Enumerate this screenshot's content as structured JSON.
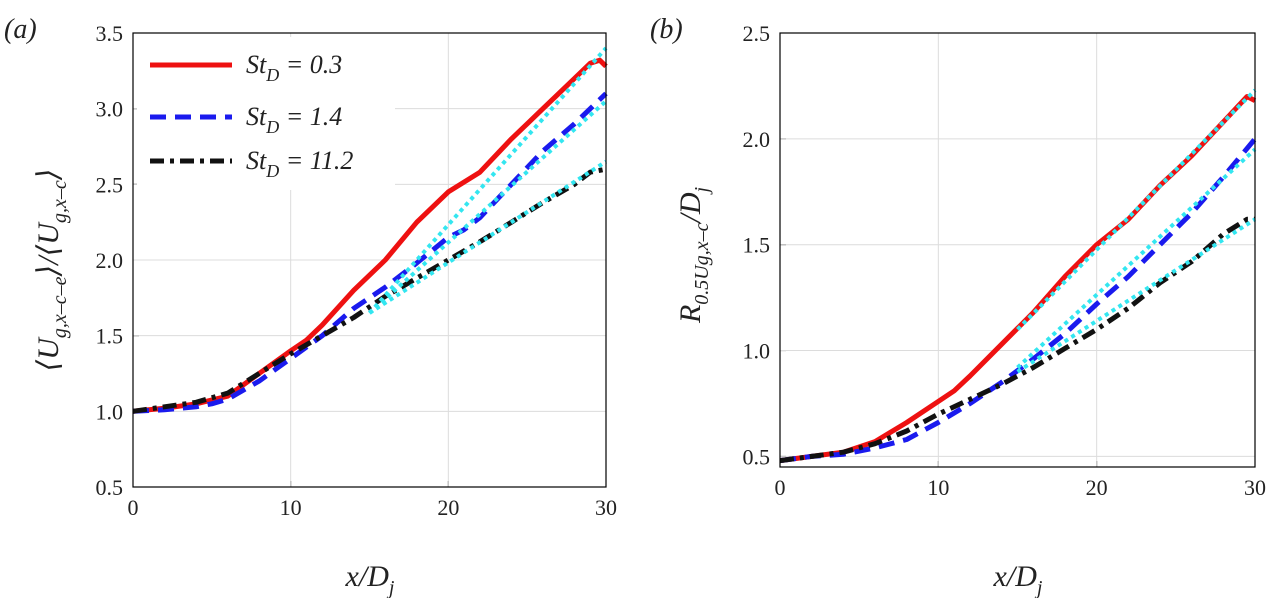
{
  "chart_data": [
    {
      "type": "line",
      "panel_label": "(a)",
      "xlabel": "x/Dj",
      "ylabel": "⟨Ug,x–c–e⟩/⟨Ug,x–c⟩",
      "xlim": [
        0,
        30
      ],
      "ylim": [
        0.5,
        3.5
      ],
      "xticks": [
        "0",
        "10",
        "20",
        "30"
      ],
      "yticks": [
        "0.5",
        "1.0",
        "1.5",
        "2.0",
        "2.5",
        "3.0",
        "3.5"
      ],
      "grid": true,
      "legend_position": "top-left",
      "series": [
        {
          "name": "StD = 0.3",
          "style": "solid",
          "color": "#ee1111",
          "x": [
            0,
            2,
            4,
            6,
            8,
            10,
            11,
            12,
            14,
            16,
            18,
            20,
            22,
            24,
            25,
            26,
            28,
            29,
            29.6,
            30
          ],
          "y": [
            1.0,
            1.02,
            1.05,
            1.1,
            1.25,
            1.4,
            1.47,
            1.57,
            1.8,
            2.0,
            2.25,
            2.45,
            2.58,
            2.8,
            2.9,
            3.0,
            3.2,
            3.3,
            3.32,
            3.28
          ]
        },
        {
          "name": "StD = 1.4",
          "style": "dashed",
          "color": "#1a1aee",
          "x": [
            0,
            2,
            4,
            5,
            6,
            8,
            10,
            12,
            14,
            16,
            18,
            20,
            21,
            22,
            24,
            26,
            28,
            30
          ],
          "y": [
            1.0,
            1.01,
            1.03,
            1.05,
            1.08,
            1.2,
            1.35,
            1.5,
            1.68,
            1.82,
            1.98,
            2.15,
            2.2,
            2.28,
            2.5,
            2.72,
            2.9,
            3.1
          ]
        },
        {
          "name": "StD = 11.2",
          "style": "dashdot",
          "color": "#111111",
          "x": [
            0,
            2,
            4,
            6,
            8,
            10,
            12,
            14,
            16,
            18,
            20,
            22,
            24,
            26,
            28,
            29,
            30
          ],
          "y": [
            1.0,
            1.03,
            1.06,
            1.12,
            1.25,
            1.38,
            1.5,
            1.62,
            1.76,
            1.88,
            2.0,
            2.12,
            2.25,
            2.38,
            2.5,
            2.58,
            2.6
          ]
        },
        {
          "name": "",
          "style": "dotted",
          "color": "#33e6f0",
          "x": [
            15,
            30
          ],
          "y": [
            1.65,
            3.4
          ]
        },
        {
          "name": "",
          "style": "dotted",
          "color": "#33e6f0",
          "x": [
            15,
            30
          ],
          "y": [
            1.65,
            3.05
          ]
        },
        {
          "name": "",
          "style": "dotted",
          "color": "#33e6f0",
          "x": [
            15,
            30
          ],
          "y": [
            1.65,
            2.65
          ]
        }
      ]
    },
    {
      "type": "line",
      "panel_label": "(b)",
      "xlabel": "x/Dj",
      "ylabel": "R0.5Ug,x–c/Dj",
      "xlim": [
        0,
        30
      ],
      "ylim": [
        0.45,
        2.5
      ],
      "xticks": [
        "0",
        "10",
        "20",
        "30"
      ],
      "yticks": [
        "0.5",
        "1.0",
        "1.5",
        "2.0",
        "2.5"
      ],
      "grid": true,
      "series": [
        {
          "name": "StD = 0.3",
          "style": "solid",
          "color": "#ee1111",
          "x": [
            0,
            2,
            4,
            6,
            8,
            10,
            11,
            12,
            14,
            16,
            18,
            20,
            22,
            24,
            26,
            28,
            29.5,
            30
          ],
          "y": [
            0.48,
            0.5,
            0.52,
            0.57,
            0.66,
            0.76,
            0.81,
            0.88,
            1.03,
            1.18,
            1.35,
            1.5,
            1.62,
            1.78,
            1.92,
            2.08,
            2.2,
            2.18
          ]
        },
        {
          "name": "StD = 1.4",
          "style": "dashed",
          "color": "#1a1aee",
          "x": [
            0,
            2,
            4,
            6,
            8,
            10,
            12,
            14,
            16,
            18,
            20,
            22,
            24,
            26,
            28,
            30
          ],
          "y": [
            0.48,
            0.5,
            0.51,
            0.54,
            0.58,
            0.66,
            0.75,
            0.85,
            0.96,
            1.08,
            1.22,
            1.35,
            1.5,
            1.65,
            1.82,
            2.0
          ]
        },
        {
          "name": "StD = 11.2",
          "style": "dashdot",
          "color": "#111111",
          "x": [
            0,
            2,
            4,
            6,
            8,
            10,
            12,
            14,
            16,
            18,
            20,
            22,
            24,
            26,
            28,
            29.5,
            30
          ],
          "y": [
            0.48,
            0.5,
            0.52,
            0.56,
            0.62,
            0.7,
            0.77,
            0.84,
            0.92,
            1.01,
            1.1,
            1.2,
            1.32,
            1.42,
            1.55,
            1.62,
            1.62
          ]
        },
        {
          "name": "",
          "style": "dotted",
          "color": "#33e6f0",
          "x": [
            15,
            30
          ],
          "y": [
            1.1,
            2.23
          ]
        },
        {
          "name": "",
          "style": "dotted",
          "color": "#33e6f0",
          "x": [
            15,
            30
          ],
          "y": [
            0.92,
            1.95
          ]
        },
        {
          "name": "",
          "style": "dotted",
          "color": "#33e6f0",
          "x": [
            15,
            30
          ],
          "y": [
            0.9,
            1.62
          ]
        }
      ]
    }
  ]
}
